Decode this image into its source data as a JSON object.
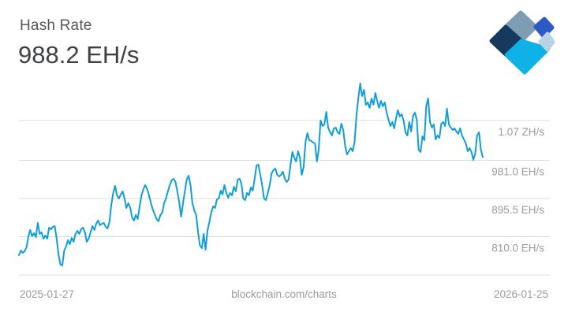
{
  "header": {
    "title": "Hash Rate",
    "current_value": "988.2 EH/s"
  },
  "logo": {
    "name": "blockchain-com-logo",
    "colors": {
      "slate": "#7E9DB3",
      "navy": "#15395F",
      "royal": "#2C59C6",
      "pale": "#B7D3E4",
      "cyan": "#0FB1E7"
    }
  },
  "chart_data": {
    "type": "line",
    "title": "Hash Rate",
    "unit": "EH/s",
    "line_color": "#0F9ED9",
    "gridline_color": "#DCDCDC",
    "axis_label_color": "#9B9B9B",
    "legend_position": "none",
    "grid": "horizontal-only",
    "ylim_ehs": [
      700,
      1170
    ],
    "y_gridlines": [
      {
        "label": "1.07 ZH/s",
        "value_ehs": 1070
      },
      {
        "label": "981.0 EH/s",
        "value_ehs": 981
      },
      {
        "label": "895.5 EH/s",
        "value_ehs": 895.5
      },
      {
        "label": "810.0 EH/s",
        "value_ehs": 810
      }
    ],
    "x_axis": {
      "start_label": "2025-01-27",
      "end_label": "2026-01-25"
    },
    "watermark": "blockchain.com/charts",
    "series": [
      {
        "name": "Hash Rate (EH/s)",
        "values": [
          768.6,
          779.1,
          773.9,
          777.4,
          786.2,
          810.9,
          825,
          810.9,
          817.9,
          809.1,
          840.8,
          816.2,
          819.7,
          805.6,
          812.6,
          805.6,
          830.3,
          826.7,
          832,
          833.8,
          805.6,
          770.3,
          747.4,
          745.7,
          779.1,
          788,
          802.1,
          793.2,
          807.4,
          798.5,
          816.2,
          823.2,
          816.2,
          826.7,
          830.3,
          819.7,
          798.5,
          805.6,
          819.7,
          833.8,
          825,
          839.1,
          846.1,
          835.6,
          839.1,
          840.8,
          832,
          828.5,
          842.6,
          881.4,
          907.8,
          923.7,
          902.6,
          895.5,
          904.3,
          911.4,
          895.5,
          874.3,
          884.9,
          876.1,
          853.2,
          846.1,
          858.5,
          849.7,
          877.9,
          902.6,
          916.7,
          925.5,
          916.7,
          902.6,
          884.9,
          870.8,
          860.2,
          849.7,
          844.4,
          858.5,
          863.8,
          884.9,
          895.5,
          911.4,
          925.5,
          936,
          939.6,
          932.5,
          911.4,
          886.7,
          855,
          884.9,
          911.4,
          937.8,
          946.6,
          925.5,
          884.9,
          869,
          858.5,
          819.7,
          789.7,
          784.4,
          816.2,
          780.9,
          823.2,
          842.6,
          863.8,
          877.9,
          874.3,
          893.7,
          895.5,
          913.1,
          904.3,
          925.5,
          907.8,
          897.3,
          907.8,
          902.6,
          921.9,
          911.4,
          937.8,
          939.6,
          929,
          895.5,
          892,
          907.8,
          902.6,
          920.2,
          913.1,
          939.6,
          969.5,
          971.3,
          948.4,
          925.5,
          895.5,
          892,
          907.8,
          925.5,
          951.9,
          959,
          962.5,
          948.4,
          944.9,
          948.4,
          955.4,
          939.6,
          932.5,
          937.8,
          969.5,
          999.5,
          987.2,
          978.4,
          1001.3,
          987.2,
          948.4,
          966,
          1022.4,
          1041.8,
          1026,
          1024.2,
          1020.7,
          1018.9,
          978.4,
          1004.8,
          1070,
          1057.7,
          1061.2,
          1089.4,
          1054.2,
          1043.6,
          1036.5,
          1052.4,
          1054.2,
          1043.6,
          1040.1,
          1063,
          1048.9,
          1013.6,
          994.2,
          1001.3,
          1008.3,
          1001.3,
          1022.4,
          1082.4,
          1119.4,
          1152.9,
          1124.7,
          1138.8,
          1105.3,
          1110.6,
          1098.2,
          1119.4,
          1105.3,
          1131.7,
          1114.1,
          1098.2,
          1114.1,
          1101.8,
          1110.6,
          1087.7,
          1071.8,
          1057.7,
          1066.5,
          1052.4,
          1075.3,
          1092.9,
          1078.8,
          1084.1,
          1070,
          1043.6,
          1036.5,
          1066.5,
          1045.3,
          1080.6,
          1087.7,
          1071.8,
          1004.8,
          999.5,
          1034.8,
          1026,
          1101.8,
          1119.4,
          1066.5,
          1054.2,
          1061.2,
          1027.7,
          1036.5,
          1031.2,
          1063,
          1066.5,
          1057.7,
          1096.5,
          1061.2,
          1054.2,
          1048.9,
          1052.4,
          1045.3,
          1040.1,
          1052.4,
          1036.5,
          1027.7,
          1018.9,
          1001.3,
          1008.3,
          999.5,
          981.9,
          996,
          1036.5,
          1043.6,
          1004.8,
          988.2
        ]
      }
    ]
  }
}
